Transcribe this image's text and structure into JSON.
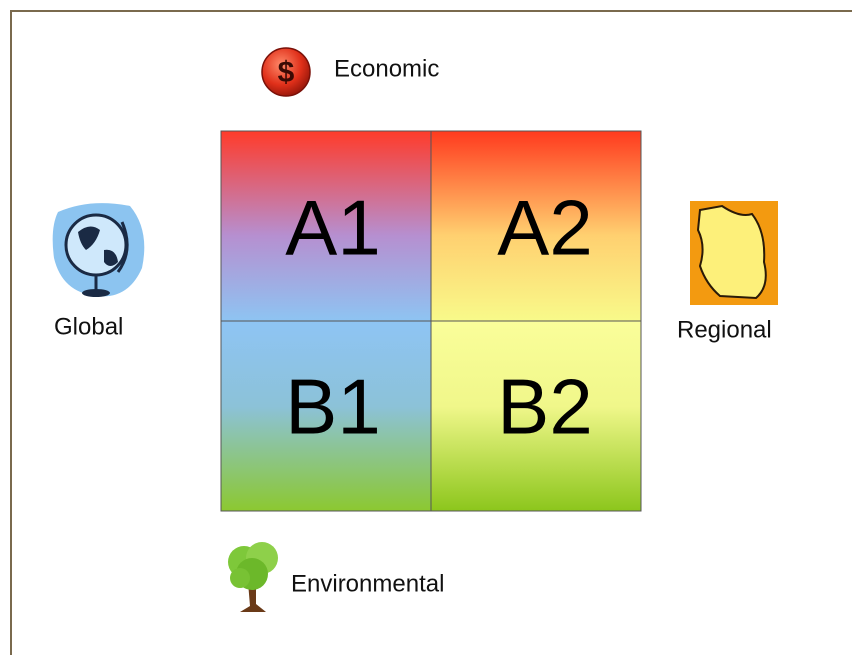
{
  "axes": {
    "top": "Economic",
    "bottom": "Environmental",
    "left": "Global",
    "right": "Regional"
  },
  "economic_icon": "$",
  "quadrants": [
    {
      "label": "A1"
    },
    {
      "label": "A2"
    },
    {
      "label": "B1"
    },
    {
      "label": "B2"
    }
  ]
}
